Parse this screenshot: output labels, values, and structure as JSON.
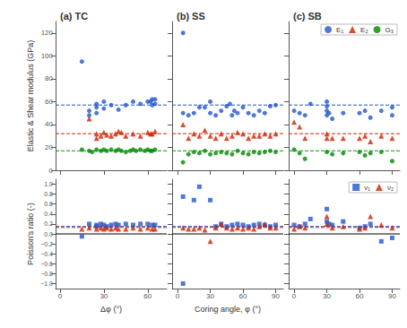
{
  "chart_data": [
    {
      "type": "scatter",
      "title": "(a) TC",
      "ylabel": "Elastic & Shear modulus (GPa)",
      "xlim": [
        -3,
        73
      ],
      "xticks": [
        0,
        30,
        60
      ],
      "ylim": [
        0,
        130
      ],
      "yticks": [
        0,
        20,
        40,
        60,
        80,
        100,
        120
      ],
      "grid": false,
      "tick_labels": "y",
      "series": [
        {
          "color": "#2255cc",
          "marker": "circle",
          "x": [
            15,
            20,
            20,
            25,
            25,
            25,
            30,
            30,
            35,
            40,
            45,
            50,
            55,
            60,
            62,
            63,
            63,
            65,
            65
          ],
          "values": [
            95,
            52,
            48,
            58,
            55,
            50,
            60,
            54,
            57,
            53,
            57,
            60,
            58,
            60,
            60,
            62,
            57,
            62,
            58
          ]
        },
        {
          "color": "#cc2200",
          "marker": "triangle",
          "x": [
            20,
            25,
            25,
            28,
            30,
            32,
            35,
            38,
            40,
            42,
            45,
            50,
            55,
            60,
            62,
            63,
            65
          ],
          "values": [
            45,
            32,
            28,
            30,
            33,
            31,
            30,
            32,
            34,
            33,
            30,
            32,
            30,
            33,
            32,
            32,
            34
          ]
        },
        {
          "color": "#008800",
          "marker": "circle",
          "x": [
            15,
            20,
            22,
            25,
            28,
            30,
            32,
            35,
            38,
            40,
            42,
            45,
            48,
            50,
            52,
            55,
            58,
            60,
            62,
            63,
            65
          ],
          "values": [
            18,
            17,
            16,
            18,
            17,
            18,
            17,
            18,
            17,
            18,
            17,
            16,
            17,
            18,
            17,
            18,
            17,
            18,
            17,
            17,
            18
          ]
        }
      ],
      "reference_lines": [
        {
          "value": 57,
          "color": "#2255cc",
          "line_style": "dashed"
        },
        {
          "value": 32,
          "color": "#cc2200",
          "line_style": "dashed"
        },
        {
          "value": 17,
          "color": "#009900",
          "line_style": "dashed"
        }
      ]
    },
    {
      "type": "scatter",
      "title": "(b) SS",
      "xlim": [
        -5,
        97
      ],
      "xticks": [
        0,
        30,
        60,
        90
      ],
      "ylim": [
        0,
        130
      ],
      "yticks": [
        0,
        20,
        40,
        60,
        80,
        100,
        120
      ],
      "grid": false,
      "tick_labels": false,
      "series": [
        {
          "color": "#2255cc",
          "marker": "circle",
          "x": [
            5,
            5,
            10,
            15,
            20,
            25,
            30,
            30,
            35,
            40,
            45,
            48,
            50,
            52,
            55,
            60,
            65,
            70,
            75,
            80,
            85,
            90
          ],
          "values": [
            120,
            50,
            48,
            50,
            55,
            55,
            50,
            60,
            48,
            52,
            56,
            58,
            48,
            52,
            50,
            55,
            50,
            48,
            52,
            50,
            56,
            57
          ]
        },
        {
          "color": "#cc2200",
          "marker": "triangle",
          "x": [
            5,
            10,
            15,
            20,
            25,
            30,
            35,
            40,
            45,
            50,
            55,
            60,
            65,
            70,
            75,
            80,
            85,
            90
          ],
          "values": [
            40,
            28,
            32,
            30,
            35,
            30,
            28,
            32,
            28,
            30,
            33,
            32,
            28,
            30,
            30,
            32,
            30,
            32
          ]
        },
        {
          "color": "#008800",
          "marker": "circle",
          "x": [
            5,
            10,
            15,
            20,
            25,
            30,
            35,
            40,
            45,
            50,
            55,
            60,
            65,
            70,
            75,
            80,
            85,
            90
          ],
          "values": [
            7,
            14,
            16,
            15,
            17,
            14,
            15,
            16,
            15,
            14,
            17,
            15,
            14,
            16,
            15,
            16,
            17,
            16
          ]
        }
      ],
      "reference_lines": [
        {
          "value": 57,
          "color": "#2255cc",
          "line_style": "dashed"
        },
        {
          "value": 32,
          "color": "#cc2200",
          "line_style": "dashed"
        },
        {
          "value": 17,
          "color": "#009900",
          "line_style": "dashed"
        }
      ]
    },
    {
      "type": "scatter",
      "title": "(c) SB",
      "xlim": [
        -5,
        97
      ],
      "xticks": [
        0,
        30,
        60,
        90
      ],
      "ylim": [
        0,
        130
      ],
      "yticks": [
        0,
        20,
        40,
        60,
        80,
        100,
        120
      ],
      "grid": false,
      "tick_labels": false,
      "legend": "upper right",
      "series": [
        {
          "name": "E₁",
          "color": "#2255cc",
          "marker": "circle",
          "x": [
            0,
            5,
            10,
            15,
            30,
            30,
            30,
            30,
            32,
            35,
            45,
            60,
            65,
            70,
            80,
            90,
            90
          ],
          "values": [
            52,
            50,
            48,
            58,
            48,
            52,
            56,
            60,
            50,
            45,
            50,
            50,
            52,
            46,
            52,
            48,
            55
          ]
        },
        {
          "name": "E₂",
          "color": "#cc2200",
          "marker": "triangle",
          "x": [
            0,
            5,
            10,
            30,
            30,
            35,
            45,
            60,
            65,
            70,
            80,
            90
          ],
          "values": [
            42,
            38,
            28,
            28,
            32,
            28,
            28,
            28,
            30,
            25,
            30,
            28
          ]
        },
        {
          "name": "G₃",
          "color": "#008800",
          "marker": "circle",
          "x": [
            0,
            5,
            10,
            30,
            35,
            45,
            60,
            65,
            70,
            80,
            90
          ],
          "values": [
            18,
            15,
            10,
            16,
            14,
            15,
            16,
            13,
            15,
            16,
            8
          ]
        }
      ],
      "reference_lines": [
        {
          "value": 57,
          "color": "#2255cc",
          "line_style": "dashed"
        },
        {
          "value": 32,
          "color": "#cc2200",
          "line_style": "dashed"
        },
        {
          "value": 17,
          "color": "#009900",
          "line_style": "dashed"
        }
      ]
    },
    {
      "type": "scatter",
      "xlabel": "Δφ (°)",
      "ylabel": "Poisson's ratio (-)",
      "xlim": [
        -3,
        73
      ],
      "xticks": [
        0,
        30,
        60
      ],
      "ylim": [
        -1.1,
        1.1
      ],
      "yticks": [
        {
          "value": -1.0,
          "label": "−1.0"
        },
        {
          "value": -0.8,
          "label": "−0.8"
        },
        {
          "value": -0.6,
          "label": "−0.6"
        },
        {
          "value": -0.4,
          "label": "−0.4"
        },
        {
          "value": -0.2,
          "label": "−0.2"
        },
        {
          "value": 0.0,
          "label": "0.0"
        },
        {
          "value": 0.2,
          "label": "0.2"
        },
        {
          "value": 0.4,
          "label": "0.4"
        },
        {
          "value": 0.6,
          "label": "0.6"
        },
        {
          "value": 0.8,
          "label": "0.8"
        },
        {
          "value": 1.0,
          "label": "1.0"
        }
      ],
      "grid": false,
      "series": [
        {
          "color": "#2255cc",
          "marker": "square",
          "x": [
            15,
            20,
            25,
            25,
            28,
            30,
            32,
            35,
            38,
            40,
            45,
            50,
            55,
            60,
            63,
            65
          ],
          "values": [
            -0.05,
            0.2,
            0.15,
            0.18,
            0.2,
            0.18,
            0.15,
            0.18,
            0.2,
            0.18,
            0.2,
            0.18,
            0.2,
            0.2,
            0.18,
            0.18
          ]
        },
        {
          "color": "#cc2200",
          "marker": "triangle",
          "x": [
            15,
            20,
            25,
            28,
            30,
            32,
            35,
            38,
            40,
            45,
            50,
            55,
            60,
            63,
            65
          ],
          "values": [
            0.1,
            0.12,
            0.1,
            0.12,
            0.1,
            0.12,
            0.1,
            0.12,
            0.1,
            0.1,
            0.12,
            0.1,
            0.12,
            0.1,
            0.1
          ]
        }
      ],
      "reference_lines": [
        {
          "value": 0.15,
          "color": "#2255cc",
          "line_style": "dashed"
        },
        {
          "value": 0.13,
          "color": "#cc2200",
          "line_style": "dashed"
        },
        {
          "value": 0,
          "color": "black",
          "line_style": "solid"
        }
      ]
    },
    {
      "type": "scatter",
      "xlabel": "Coring angle, φ (°)",
      "xlim": [
        -5,
        97
      ],
      "xticks": [
        0,
        30,
        60,
        90
      ],
      "ylim": [
        -1.1,
        1.1
      ],
      "yticks": [
        {
          "value": -1.0,
          "label": "−1.0"
        },
        {
          "value": -0.8,
          "label": "−0.8"
        },
        {
          "value": -0.6,
          "label": "−0.6"
        },
        {
          "value": -0.4,
          "label": "−0.4"
        },
        {
          "value": -0.2,
          "label": "−0.2"
        },
        {
          "value": 0.0,
          "label": "0.0"
        },
        {
          "value": 0.2,
          "label": "0.2"
        },
        {
          "value": 0.4,
          "label": "0.4"
        },
        {
          "value": 0.6,
          "label": "0.6"
        },
        {
          "value": 0.8,
          "label": "0.8"
        },
        {
          "value": 1.0,
          "label": "1.0"
        }
      ],
      "grid": false,
      "tick_labels": "x",
      "series": [
        {
          "color": "#2255cc",
          "marker": "square",
          "x": [
            5,
            5,
            15,
            20,
            30,
            35,
            40,
            45,
            50,
            55,
            60,
            65,
            70,
            75,
            80,
            85,
            90
          ],
          "values": [
            -1.0,
            0.75,
            0.68,
            0.95,
            0.68,
            0.15,
            0.2,
            0.15,
            0.18,
            0.2,
            0.18,
            0.15,
            0.18,
            0.2,
            0.18,
            0.15,
            0.18
          ]
        },
        {
          "color": "#cc2200",
          "marker": "triangle",
          "x": [
            5,
            10,
            15,
            20,
            25,
            30,
            35,
            40,
            45,
            50,
            55,
            60,
            65,
            70,
            75,
            80,
            85,
            90
          ],
          "values": [
            0.12,
            0.1,
            0.1,
            0.12,
            0.08,
            -0.15,
            0.12,
            0.2,
            0.12,
            0.1,
            0.12,
            0.1,
            0.12,
            0.1,
            0.15,
            0.2,
            0.12,
            0.12
          ]
        }
      ],
      "reference_lines": [
        {
          "value": 0.15,
          "color": "#2255cc",
          "line_style": "dashed"
        },
        {
          "value": 0.13,
          "color": "#cc2200",
          "line_style": "dashed"
        },
        {
          "value": 0,
          "color": "black",
          "line_style": "solid"
        }
      ]
    },
    {
      "type": "scatter",
      "xlim": [
        -5,
        97
      ],
      "xticks": [
        0,
        30,
        60,
        90
      ],
      "ylim": [
        -1.1,
        1.1
      ],
      "yticks": [
        {
          "value": -1.0,
          "label": "−1.0"
        },
        {
          "value": -0.8,
          "label": "−0.8"
        },
        {
          "value": -0.6,
          "label": "−0.6"
        },
        {
          "value": -0.4,
          "label": "−0.4"
        },
        {
          "value": -0.2,
          "label": "−0.2"
        },
        {
          "value": 0.0,
          "label": "0.0"
        },
        {
          "value": 0.2,
          "label": "0.2"
        },
        {
          "value": 0.4,
          "label": "0.4"
        },
        {
          "value": 0.6,
          "label": "0.6"
        },
        {
          "value": 0.8,
          "label": "0.8"
        },
        {
          "value": 1.0,
          "label": "1.0"
        }
      ],
      "grid": false,
      "tick_labels": "x",
      "legend": "upper right",
      "series": [
        {
          "name": "ν₁",
          "color": "#2255cc",
          "marker": "square",
          "x": [
            0,
            5,
            10,
            15,
            30,
            30,
            32,
            35,
            45,
            60,
            65,
            70,
            80,
            90
          ],
          "values": [
            0.18,
            0.15,
            0.2,
            0.3,
            0.5,
            0.25,
            0.2,
            0.18,
            0.25,
            0.12,
            0.15,
            0.2,
            -0.15,
            -0.08
          ]
        },
        {
          "name": "ν₂",
          "color": "#cc2200",
          "marker": "triangle",
          "x": [
            0,
            5,
            10,
            30,
            30,
            35,
            45,
            60,
            65,
            70,
            80,
            90
          ],
          "values": [
            0.1,
            0.15,
            0.12,
            0.35,
            0.2,
            0.12,
            0.15,
            0.1,
            0.12,
            0.35,
            0.18,
            0.12
          ]
        }
      ],
      "reference_lines": [
        {
          "value": 0.15,
          "color": "#2255cc",
          "line_style": "dashed"
        },
        {
          "value": 0.13,
          "color": "#cc2200",
          "line_style": "dashed"
        },
        {
          "value": 0,
          "color": "black",
          "line_style": "solid"
        }
      ]
    }
  ]
}
